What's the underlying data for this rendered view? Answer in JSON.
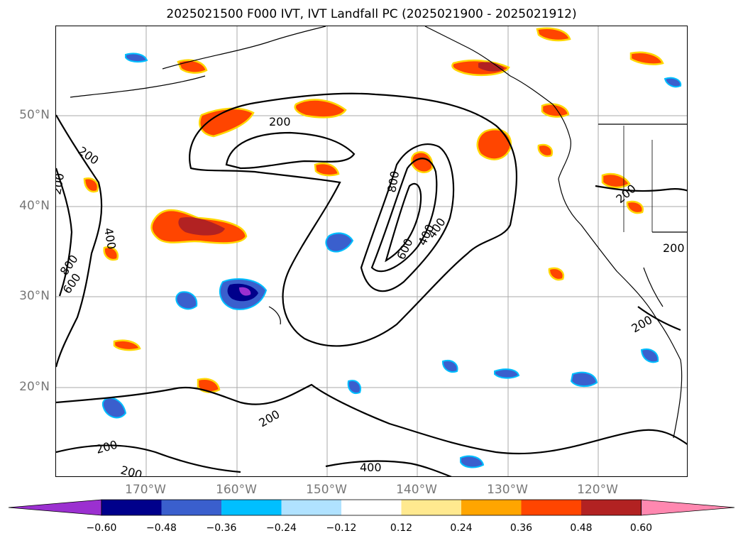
{
  "title": "2025021500 F000 IVT, IVT Landfall PC (2025021900 - 2025021912)",
  "lat_labels": [
    "50°N",
    "40°N",
    "30°N",
    "20°N"
  ],
  "lon_labels": [
    "170°W",
    "160°W",
    "150°W",
    "140°W",
    "130°W",
    "120°W"
  ],
  "contour_labels": [
    "200",
    "200",
    "200",
    "400",
    "800",
    "600",
    "400",
    "800",
    "600",
    "400",
    "200",
    "200",
    "200",
    "200",
    "200",
    "200",
    "400"
  ],
  "colorbar": {
    "tick_labels": [
      "−0.60",
      "−0.48",
      "−0.36",
      "−0.24",
      "−0.12",
      "0.12",
      "0.24",
      "0.36",
      "0.48",
      "0.60"
    ],
    "colors": [
      "#9b30d0",
      "#00008b",
      "#3a5fcd",
      "#00bfff",
      "#b0e2ff",
      "#ffffff",
      "#ffe98f",
      "#ffa500",
      "#ff4500",
      "#b22222",
      "#ff88b0"
    ]
  },
  "styles": {
    "grid_color": "#aaaaaa",
    "contour_color": "#000000",
    "coast_color": "#000000"
  }
}
